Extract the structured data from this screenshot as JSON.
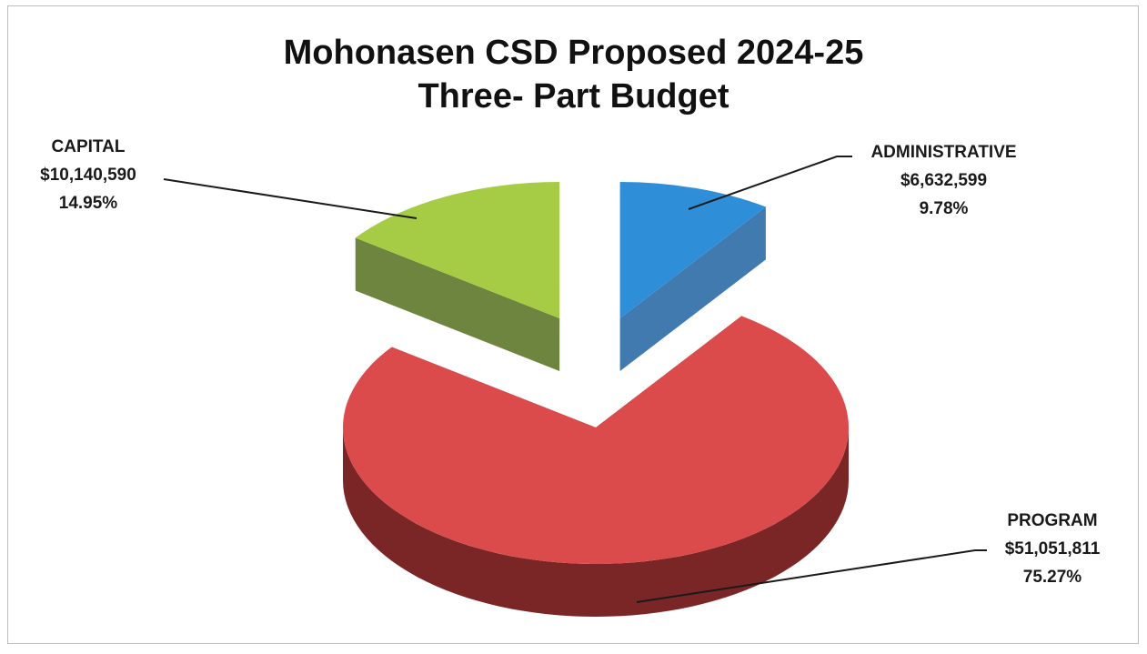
{
  "title": {
    "line1": "Mohonasen CSD Proposed 2024-25",
    "line2": "Three- Part Budget"
  },
  "chart_data": {
    "type": "pie",
    "style": "3d-exploded",
    "categories": [
      "ADMINISTRATIVE",
      "PROGRAM",
      "CAPITAL"
    ],
    "values": [
      6632599,
      51051811,
      10140590
    ],
    "percent_labels": [
      "9.78%",
      "75.27%",
      "14.95%"
    ],
    "value_labels": [
      "$6,632,599",
      "$51,051,811",
      "$10,140,590"
    ],
    "colors": [
      "#2e8fd8",
      "#dc4b4b",
      "#a6cc46"
    ],
    "side_colors": [
      "#1f63a0",
      "#7a2626",
      "#55701e"
    ],
    "legend": "none"
  },
  "labels": {
    "capital": {
      "name": "CAPITAL",
      "amount": "$10,140,590",
      "pct": "14.95%"
    },
    "administrative": {
      "name": "ADMINISTRATIVE",
      "amount": "$6,632,599",
      "pct": "9.78%"
    },
    "program": {
      "name": "PROGRAM",
      "amount": "$51,051,811",
      "pct": "75.27%"
    }
  }
}
